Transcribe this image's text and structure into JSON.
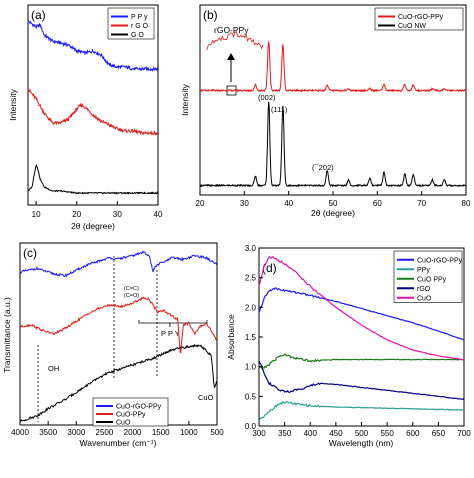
{
  "chart_data": [
    {
      "panel": "(a)",
      "type": "line",
      "xlabel": "2θ (degree)",
      "ylabel": "Intensity",
      "xlim": [
        8,
        40
      ],
      "xticks": [
        10,
        20,
        30,
        40
      ],
      "legend": "top-right",
      "series": [
        {
          "name": "P P y",
          "color": "#1a1aff",
          "x": [
            8,
            10,
            11,
            12,
            14,
            16,
            18,
            20,
            22,
            24,
            26,
            28,
            30,
            32,
            34,
            36,
            38,
            40
          ],
          "y": [
            0.92,
            0.89,
            0.9,
            0.85,
            0.82,
            0.81,
            0.8,
            0.77,
            0.76,
            0.77,
            0.75,
            0.7,
            0.69,
            0.69,
            0.68,
            0.68,
            0.68,
            0.68
          ]
        },
        {
          "name": "r G O",
          "color": "#e21b1b",
          "x": [
            8,
            10,
            12,
            14,
            16,
            18,
            20,
            21,
            22,
            24,
            26,
            28,
            30,
            32,
            34,
            36,
            38,
            40
          ],
          "y": [
            0.58,
            0.53,
            0.46,
            0.41,
            0.41,
            0.43,
            0.48,
            0.5,
            0.49,
            0.45,
            0.42,
            0.4,
            0.38,
            0.37,
            0.37,
            0.36,
            0.36,
            0.36
          ]
        },
        {
          "name": "G O",
          "color": "#000000",
          "x": [
            8,
            9,
            9.5,
            10,
            10.3,
            11,
            12,
            14,
            16,
            20,
            24,
            28,
            32,
            36,
            40
          ],
          "y": [
            0.07,
            0.09,
            0.15,
            0.2,
            0.19,
            0.13,
            0.09,
            0.07,
            0.07,
            0.06,
            0.06,
            0.06,
            0.06,
            0.06,
            0.06
          ]
        }
      ]
    },
    {
      "panel": "(b)",
      "type": "line",
      "xlabel": "2θ (degree)",
      "ylabel": "Intensity",
      "xlim": [
        20,
        80
      ],
      "xticks": [
        20,
        30,
        40,
        50,
        60,
        70,
        80
      ],
      "legend": "top-right",
      "inset_label": "rGO-PPy",
      "peak_labels": [
        "(002)",
        "(111)",
        "(¯202)"
      ],
      "peaks_2theta": [
        32.5,
        35.5,
        38.7,
        48.7,
        53.5,
        58.3,
        61.5,
        66.2,
        68.1,
        72.4,
        75.1
      ],
      "series": [
        {
          "name": "CuO-rGO-PPy",
          "color": "#e21b1b",
          "offset": 0.55,
          "peak_heights": [
            0.03,
            0.26,
            0.24,
            0.03,
            0.01,
            0.01,
            0.03,
            0.03,
            0.03,
            0.01,
            0.01
          ]
        },
        {
          "name": "CuO NW",
          "color": "#000000",
          "offset": 0.05,
          "peak_heights": [
            0.05,
            0.44,
            0.42,
            0.08,
            0.03,
            0.04,
            0.07,
            0.06,
            0.06,
            0.03,
            0.03
          ]
        }
      ]
    },
    {
      "panel": "(c)",
      "type": "line",
      "xlabel": "Wavenumber (cm⁻¹)",
      "ylabel": "Transmittance (a.u.)",
      "xlim": [
        4000,
        500
      ],
      "xticks": [
        4000,
        3500,
        3000,
        2500,
        2000,
        1500,
        1000,
        500
      ],
      "legend": "bottom-left",
      "annotations": [
        "OH",
        "(C=C)",
        "(C=O)",
        "P P Y",
        "CuO"
      ],
      "series": [
        {
          "name": "CuO-rGO-PPy",
          "color": "#1a1aff",
          "x": [
            4000,
            3700,
            3400,
            3200,
            3000,
            2800,
            2600,
            2400,
            2300,
            2000,
            1800,
            1700,
            1640,
            1600,
            1500,
            1400,
            1300,
            1100,
            900,
            700,
            600,
            500
          ],
          "y": [
            0.84,
            0.86,
            0.83,
            0.82,
            0.85,
            0.88,
            0.9,
            0.92,
            0.91,
            0.93,
            0.95,
            0.93,
            0.84,
            0.87,
            0.89,
            0.9,
            0.92,
            0.91,
            0.93,
            0.92,
            0.9,
            0.88
          ]
        },
        {
          "name": "CuO-PPy",
          "color": "#e21b1b",
          "x": [
            4000,
            3800,
            3600,
            3400,
            3200,
            3000,
            2800,
            2600,
            2400,
            2200,
            2000,
            1800,
            1700,
            1560,
            1450,
            1300,
            1200,
            1150,
            1100,
            1000,
            900,
            800,
            700,
            600,
            500
          ],
          "y": [
            0.54,
            0.55,
            0.52,
            0.5,
            0.53,
            0.57,
            0.61,
            0.64,
            0.66,
            0.65,
            0.67,
            0.7,
            0.69,
            0.62,
            0.63,
            0.6,
            0.58,
            0.38,
            0.55,
            0.56,
            0.5,
            0.54,
            0.56,
            0.52,
            0.46
          ]
        },
        {
          "name": "CuO",
          "color": "#000000",
          "x": [
            4000,
            3700,
            3500,
            3200,
            3000,
            2800,
            2600,
            2400,
            2200,
            2000,
            1800,
            1600,
            1400,
            1200,
            1000,
            800,
            700,
            600,
            550,
            500
          ],
          "y": [
            0.02,
            0.05,
            0.09,
            0.14,
            0.18,
            0.22,
            0.26,
            0.29,
            0.31,
            0.33,
            0.35,
            0.37,
            0.4,
            0.42,
            0.43,
            0.44,
            0.41,
            0.38,
            0.2,
            0.25
          ]
        }
      ]
    },
    {
      "panel": "(d)",
      "type": "line",
      "xlabel": "Wavelength (nm)",
      "ylabel": "Absorbance",
      "xlim": [
        300,
        700
      ],
      "ylim": [
        0.0,
        3.0
      ],
      "xticks": [
        300,
        350,
        400,
        450,
        500,
        550,
        600,
        650,
        700
      ],
      "yticks": [
        0.0,
        0.5,
        1.0,
        1.5,
        2.0,
        2.5,
        3.0
      ],
      "legend": "top-right",
      "series": [
        {
          "name": "CuO-rGO-PPy",
          "color": "#1a1aff",
          "x": [
            300,
            310,
            320,
            330,
            340,
            360,
            380,
            400,
            450,
            500,
            550,
            600,
            650,
            700
          ],
          "y": [
            1.9,
            2.15,
            2.28,
            2.32,
            2.3,
            2.27,
            2.24,
            2.2,
            2.1,
            1.98,
            1.86,
            1.74,
            1.6,
            1.45
          ]
        },
        {
          "name": "PPy",
          "color": "#2a9d8f",
          "x": [
            300,
            320,
            340,
            350,
            360,
            380,
            400,
            450,
            500,
            550,
            600,
            650,
            700
          ],
          "y": [
            0.1,
            0.25,
            0.38,
            0.4,
            0.39,
            0.36,
            0.34,
            0.32,
            0.31,
            0.3,
            0.29,
            0.28,
            0.27
          ]
        },
        {
          "name": "CuO PPy",
          "color": "#1c7a1c",
          "x": [
            300,
            310,
            320,
            340,
            350,
            360,
            380,
            400,
            450,
            500,
            550,
            600,
            650,
            700
          ],
          "y": [
            1.0,
            0.98,
            1.04,
            1.18,
            1.2,
            1.17,
            1.13,
            1.1,
            1.12,
            1.12,
            1.12,
            1.12,
            1.12,
            1.12
          ]
        },
        {
          "name": "rGO",
          "color": "#000080",
          "x": [
            300,
            310,
            320,
            340,
            360,
            380,
            400,
            420,
            450,
            500,
            550,
            600,
            650,
            700
          ],
          "y": [
            1.1,
            0.9,
            0.72,
            0.6,
            0.58,
            0.62,
            0.68,
            0.72,
            0.7,
            0.65,
            0.6,
            0.55,
            0.5,
            0.45
          ]
        },
        {
          "name": "CuO",
          "color": "#e0169f",
          "x": [
            300,
            310,
            320,
            330,
            340,
            360,
            380,
            400,
            450,
            500,
            550,
            600,
            650,
            700
          ],
          "y": [
            2.35,
            2.7,
            2.85,
            2.83,
            2.78,
            2.68,
            2.52,
            2.35,
            2.0,
            1.7,
            1.45,
            1.28,
            1.18,
            1.12
          ]
        }
      ]
    }
  ]
}
